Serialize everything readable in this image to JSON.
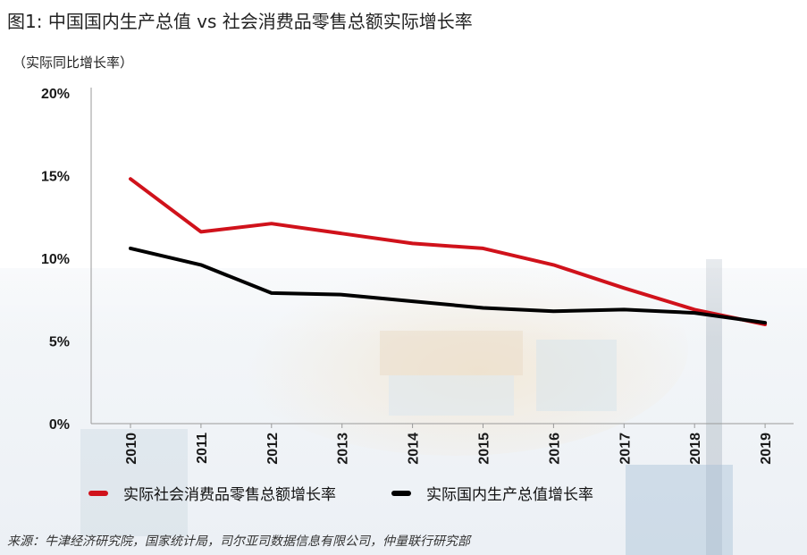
{
  "title": "图1:   中国国内生产总值 vs 社会消费品零售总额实际增长率",
  "y_unit_label": "（实际同比增长率）",
  "source": "来源：牛津经济研究院，国家统计局，司尔亚司数据信息有限公司，仲量联行研究部",
  "colors": {
    "retail": "#d0121b",
    "gdp": "#000000",
    "axis": "#999999"
  },
  "chart_data": {
    "type": "line",
    "x": [
      "2010",
      "2011",
      "2012",
      "2013",
      "2014",
      "2015",
      "2016",
      "2017",
      "2018",
      "2019"
    ],
    "yticks": [
      "0%",
      "5%",
      "10%",
      "15%",
      "20%"
    ],
    "ylim": [
      0,
      20
    ],
    "ylabel": "（实际同比增长率）",
    "xlabel": "",
    "grid": false,
    "legend_position": "bottom",
    "series": [
      {
        "name": "实际社会消费品零售总额增长率",
        "color": "#d0121b",
        "values": [
          14.8,
          11.6,
          12.1,
          11.5,
          10.9,
          10.6,
          9.6,
          8.2,
          6.9,
          6.0
        ]
      },
      {
        "name": "实际国内生产总值增长率",
        "color": "#000000",
        "values": [
          10.6,
          9.6,
          7.9,
          7.8,
          7.4,
          7.0,
          6.8,
          6.9,
          6.7,
          6.1
        ]
      }
    ]
  }
}
